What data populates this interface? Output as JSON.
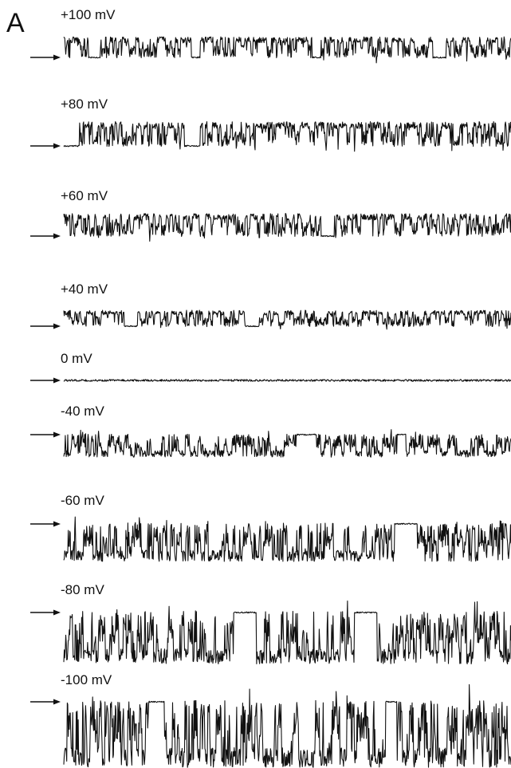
{
  "panel_label": "A",
  "chart_data": {
    "type": "line",
    "title": "",
    "xlabel": "",
    "ylabel": "",
    "grid": false,
    "legend": "none",
    "color": "#111111",
    "series": [
      {
        "name": "+100 mV",
        "voltage_mv": 100,
        "direction": "up",
        "closed_level_marker": "arrow",
        "closures": [
          [
            0.055,
            0.08
          ],
          [
            0.285,
            0.305
          ],
          [
            0.555,
            0.575
          ],
          [
            0.825,
            0.855
          ]
        ]
      },
      {
        "name": "+80 mV",
        "voltage_mv": 80,
        "direction": "up",
        "closed_level_marker": "arrow",
        "closures": [
          [
            0.0,
            0.035
          ],
          [
            0.27,
            0.305
          ]
        ]
      },
      {
        "name": "+60 mV",
        "voltage_mv": 60,
        "direction": "up",
        "closed_level_marker": "arrow",
        "closures": [
          [
            0.575,
            0.605
          ]
        ]
      },
      {
        "name": "+40 mV",
        "voltage_mv": 40,
        "direction": "up",
        "closed_level_marker": "arrow",
        "closures": [
          [
            0.135,
            0.165
          ],
          [
            0.405,
            0.435
          ]
        ]
      },
      {
        "name": "0 mV",
        "voltage_mv": 0,
        "direction": "flat",
        "closed_level_marker": "arrow",
        "closures": []
      },
      {
        "name": "-40 mV",
        "voltage_mv": -40,
        "direction": "down",
        "closed_level_marker": "arrow",
        "closures": [
          [
            0.52,
            0.565
          ],
          [
            0.745,
            0.765
          ]
        ]
      },
      {
        "name": "-60 mV",
        "voltage_mv": -60,
        "direction": "down",
        "closed_level_marker": "arrow",
        "closures": [
          [
            0.74,
            0.79
          ]
        ]
      },
      {
        "name": "-80 mV",
        "voltage_mv": -80,
        "direction": "down",
        "closed_level_marker": "arrow",
        "closures": [
          [
            0.38,
            0.43
          ],
          [
            0.65,
            0.7
          ]
        ]
      },
      {
        "name": "-100 mV",
        "voltage_mv": -100,
        "direction": "down",
        "closed_level_marker": "arrow",
        "closures": [
          [
            0.19,
            0.225
          ],
          [
            0.72,
            0.745
          ]
        ]
      }
    ]
  }
}
